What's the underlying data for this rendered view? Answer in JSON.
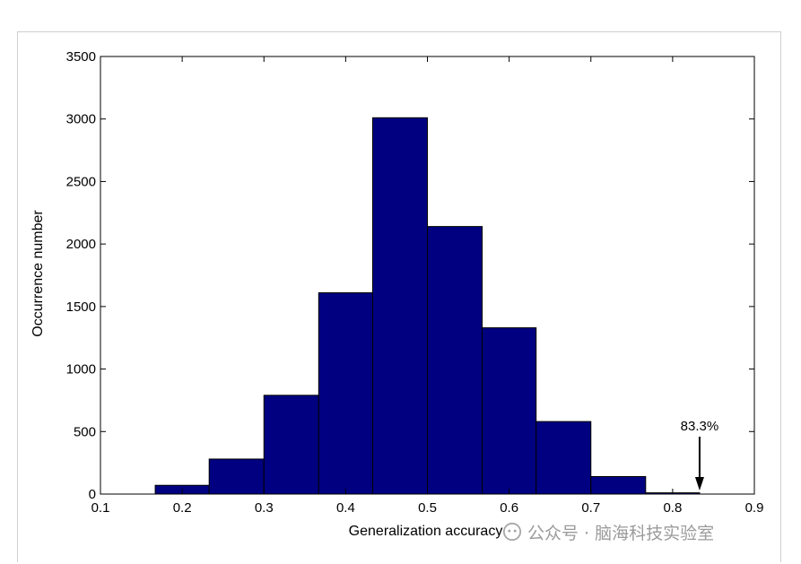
{
  "chart_data": {
    "type": "bar",
    "xlabel": "Generalization accuracy",
    "ylabel": "Occurrence number",
    "xlim": [
      0.1,
      0.9
    ],
    "ylim": [
      0,
      3500
    ],
    "xticks": [
      "0.1",
      "0.2",
      "0.3",
      "0.4",
      "0.5",
      "0.6",
      "0.7",
      "0.8",
      "0.9"
    ],
    "yticks": [
      "0",
      "500",
      "1000",
      "1500",
      "2000",
      "2500",
      "3000",
      "3500"
    ],
    "bin_edges": [
      0.167,
      0.233,
      0.3,
      0.367,
      0.433,
      0.5,
      0.567,
      0.633,
      0.7,
      0.767,
      0.833
    ],
    "values": [
      70,
      280,
      790,
      1610,
      3010,
      2140,
      1330,
      580,
      140,
      10
    ],
    "bar_color": "#000080",
    "grid": false,
    "annotation": {
      "text": "83.3%",
      "x": 0.833
    }
  },
  "watermark": {
    "text": "公众号 · 脑海科技实验室",
    "icon": "wechat-icon"
  }
}
